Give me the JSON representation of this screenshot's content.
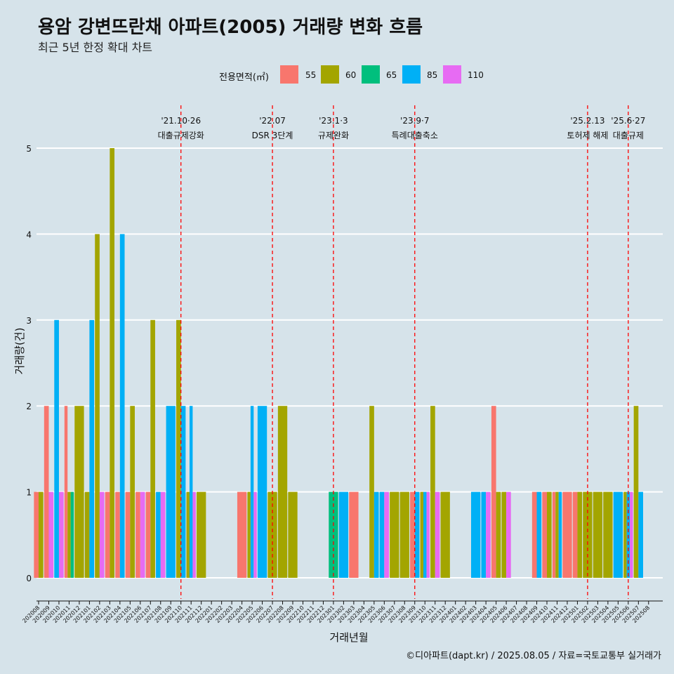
{
  "title": "용암 강변뜨란채 아파트(2005) 거래량 변화 흐름",
  "subtitle": "최근 5년 한정 확대 차트",
  "caption": "©디아파트(dapt.kr) / 2025.08.05 / 자료=국토교통부 실거래가",
  "legend": {
    "title": "전용면적(㎡)",
    "items": [
      {
        "label": "55",
        "color": "#F8766D"
      },
      {
        "label": "60",
        "color": "#A3A500"
      },
      {
        "label": "65",
        "color": "#00BF7D"
      },
      {
        "label": "85",
        "color": "#00B0F6"
      },
      {
        "label": "110",
        "color": "#E76BF3"
      }
    ]
  },
  "chart_data": {
    "type": "bar",
    "xlabel": "거래년월",
    "ylabel": "거래량(건)",
    "ylim": [
      0,
      5
    ],
    "yticks": [
      0,
      1,
      2,
      3,
      4,
      5
    ],
    "categories": [
      "202008",
      "202009",
      "202010",
      "202011",
      "202012",
      "202101",
      "202102",
      "202103",
      "202104",
      "202105",
      "202106",
      "202107",
      "202108",
      "202109",
      "202110",
      "202111",
      "202112",
      "202201",
      "202202",
      "202203",
      "202204",
      "202205",
      "202206",
      "202207",
      "202208",
      "202209",
      "202210",
      "202211",
      "202212",
      "202301",
      "202302",
      "202303",
      "202304",
      "202305",
      "202306",
      "202307",
      "202308",
      "202309",
      "202310",
      "202311",
      "202312",
      "202401",
      "202402",
      "202403",
      "202404",
      "202405",
      "202406",
      "202407",
      "202408",
      "202409",
      "202410",
      "202411",
      "202412",
      "202501",
      "202502",
      "202503",
      "202504",
      "202505",
      "202506",
      "202507",
      "202508"
    ],
    "series": [
      {
        "name": "55",
        "color": "#F8766D",
        "values": {
          "202008": 1,
          "202009": 2,
          "202011": 2,
          "202103": 1,
          "202104": 1,
          "202105": 1,
          "202106": 1,
          "202107": 1,
          "202204": 1,
          "202303": 1,
          "202309": 1,
          "202405": 2,
          "202409": 1,
          "202410": 1,
          "202411": 1,
          "202412": 1,
          "202501": 1
        }
      },
      {
        "name": "60",
        "color": "#A3A500",
        "values": {
          "202008": 1,
          "202011": 1,
          "202012": 2,
          "202101": 1,
          "202102": 4,
          "202103": 5,
          "202105": 2,
          "202107": 3,
          "202110": 3,
          "202111": 1,
          "202112": 1,
          "202205": 1,
          "202207": 1,
          "202208": 2,
          "202209": 1,
          "202305": 2,
          "202307": 1,
          "202308": 1,
          "202310": 1,
          "202311": 2,
          "202312": 1,
          "202405": 1,
          "202406": 1,
          "202410": 1,
          "202411": 1,
          "202501": 1,
          "202502": 1,
          "202503": 1,
          "202504": 1,
          "202506": 1,
          "202507": 2
        }
      },
      {
        "name": "65",
        "color": "#00BF7D",
        "values": {
          "202011": 1,
          "202301": 1
        }
      },
      {
        "name": "85",
        "color": "#00B0F6",
        "values": {
          "202010": 3,
          "202101": 3,
          "202104": 4,
          "202108": 1,
          "202109": 2,
          "202110": 2,
          "202111": 2,
          "202205": 2,
          "202206": 2,
          "202302": 1,
          "202305": 1,
          "202306": 1,
          "202309": 1,
          "202310": 1,
          "202403": 1,
          "202404": 1,
          "202409": 1,
          "202411": 1,
          "202505": 1,
          "202506": 1,
          "202507": 1
        }
      },
      {
        "name": "110",
        "color": "#E76BF3",
        "values": {
          "202009": 1,
          "202010": 1,
          "202102": 1,
          "202106": 1,
          "202108": 1,
          "202111": 1,
          "202205": 1,
          "202306": 1,
          "202310": 1,
          "202311": 1,
          "202404": 1,
          "202406": 1,
          "202506": 1
        }
      }
    ],
    "annotations": [
      {
        "x": "202110",
        "line1": "'21.10·26",
        "line2": "대출규제강화"
      },
      {
        "x": "202207",
        "line1": "'22.07",
        "line2": "DSR 3단계"
      },
      {
        "x": "202301",
        "line1": "'23.1·3",
        "line2": "규제완화"
      },
      {
        "x": "202309",
        "line1": "'23.9·7",
        "line2": "특례대출축소"
      },
      {
        "x": "202502",
        "line1": "'25.2.13",
        "line2": "토허제 해제"
      },
      {
        "x": "202506",
        "line1": "'25.6·27",
        "line2": "대출규제"
      }
    ],
    "grid": true,
    "legend_position": "top"
  }
}
